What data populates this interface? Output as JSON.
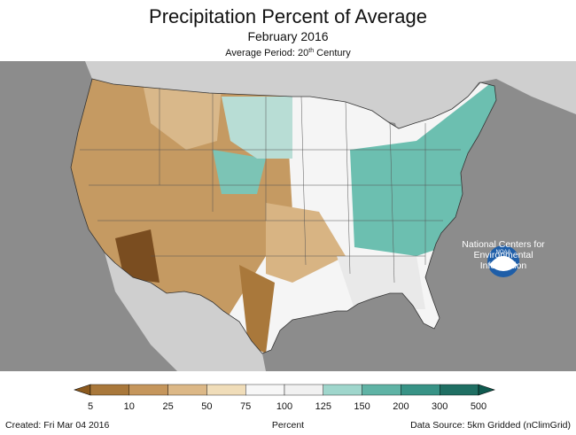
{
  "header": {
    "title": "Precipitation Percent of Average",
    "subtitle": "February 2016",
    "period_prefix": "Average Period: 20",
    "period_sup": "th",
    "period_suffix": " Century"
  },
  "legend": {
    "unit": "Percent",
    "ticks": [
      "5",
      "10",
      "25",
      "50",
      "75",
      "100",
      "125",
      "150",
      "200",
      "300",
      "500"
    ],
    "colors": [
      "#8c5a1e",
      "#a9783b",
      "#c5965c",
      "#dcb887",
      "#f0ddb9",
      "#f7f7f7",
      "#f1f1f1",
      "#9fd6cc",
      "#5fb3a5",
      "#389386",
      "#1f6f63",
      "#0f5a4f"
    ]
  },
  "logo": {
    "text": "NOAA",
    "caption_line1": "National Centers for",
    "caption_line2": "Environmental",
    "caption_line3": "Information"
  },
  "footer": {
    "created": "Created: Fri Mar 04 2016",
    "source": "Data Source: 5km Gridded (nClimGrid)"
  },
  "colors": {
    "background_land": "#cfcfcf",
    "ocean": "#8c8c8c",
    "dry": "#c59a62",
    "very_dry": "#7a4d20",
    "wet": "#6cbfb0",
    "near_normal": "#f5f5f5"
  }
}
